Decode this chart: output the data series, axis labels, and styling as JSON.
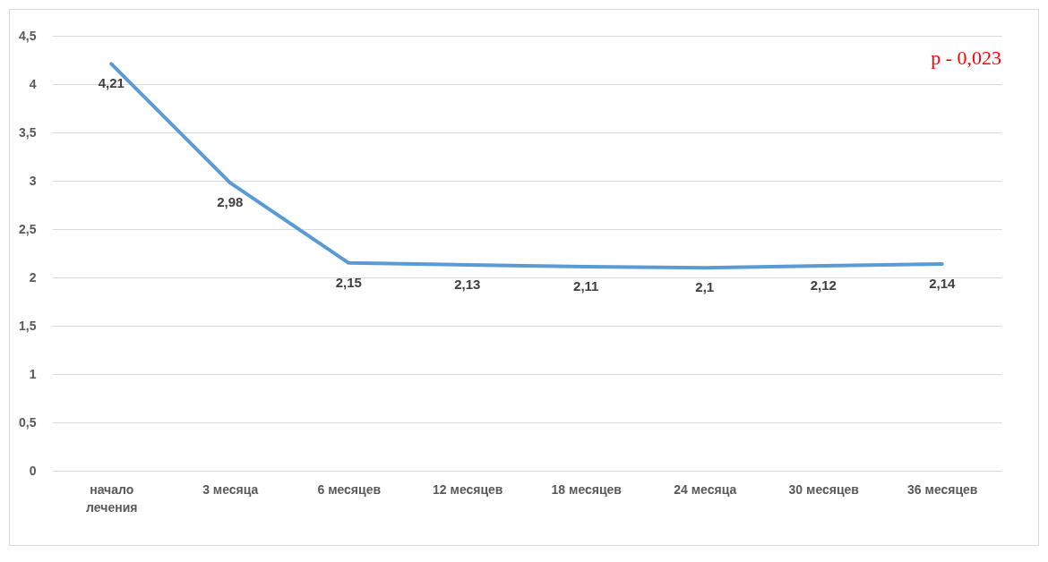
{
  "chart_data": {
    "type": "line",
    "categories": [
      "начало лечения",
      "3 месяца",
      "6 месяцев",
      "12 месяцев",
      "18 месяцев",
      "24 месяца",
      "30 месяцев",
      "36 месяцев"
    ],
    "series": [
      {
        "color": "#5b9bd5",
        "values": [
          4.21,
          2.98,
          2.15,
          2.13,
          2.11,
          2.1,
          2.12,
          2.14
        ],
        "value_labels": [
          "4,21",
          "2,98",
          "2,15",
          "2,13",
          "2,11",
          "2,1",
          "2,12",
          "2,14"
        ]
      }
    ],
    "ylim": [
      0,
      4.5
    ],
    "yticks": [
      0,
      {
        "value": 0.5,
        "label": "0,5"
      },
      1,
      {
        "value": 1.5,
        "label": "1,5"
      },
      2,
      {
        "value": 2.5,
        "label": "2,5"
      },
      3,
      {
        "value": 3.5,
        "label": "3,5"
      },
      4,
      {
        "value": 4.5,
        "label": "4,5"
      }
    ],
    "grid": "y",
    "marker": "none",
    "line_style": "solid",
    "annotations": [
      "p - 0,023"
    ]
  }
}
